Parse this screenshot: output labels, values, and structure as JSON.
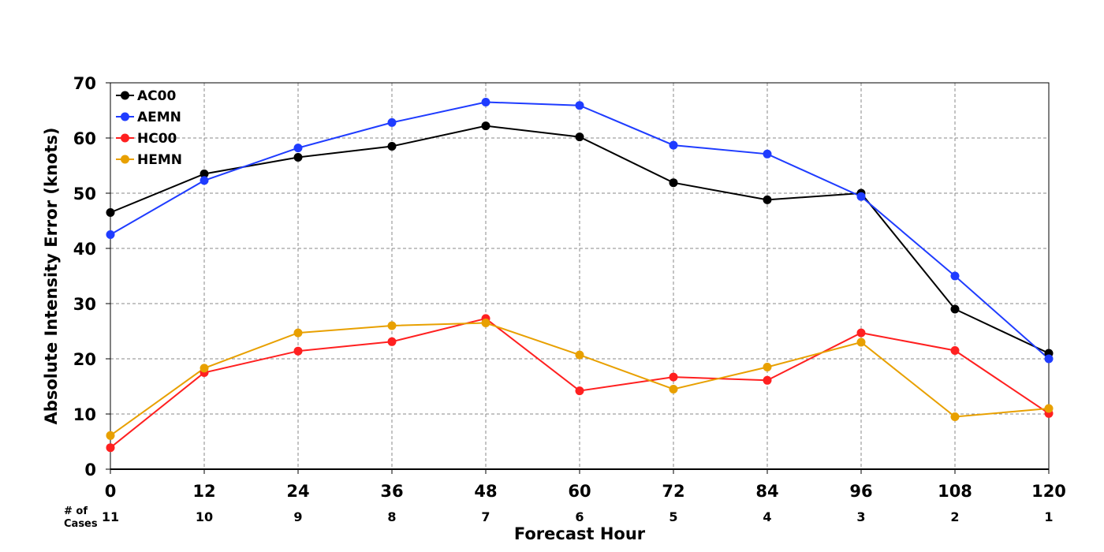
{
  "chart_data": {
    "type": "line",
    "title": "",
    "xlabel": "Forecast Hour",
    "ylabel": "Absolute Intensity Error (knots)",
    "xlim": [
      0,
      120
    ],
    "ylim": [
      0,
      70
    ],
    "grid": true,
    "legend_position": "top-left",
    "x": [
      0,
      12,
      24,
      36,
      48,
      60,
      72,
      84,
      96,
      108,
      120
    ],
    "x_tick_labels": [
      "0",
      "12",
      "24",
      "36",
      "48",
      "60",
      "72",
      "84",
      "96",
      "108",
      "120"
    ],
    "y_tick_labels": [
      "0",
      "10",
      "20",
      "30",
      "40",
      "50",
      "60",
      "70"
    ],
    "cases_label_line1": "# of",
    "cases_label_line2": "Cases",
    "cases": [
      "11",
      "10",
      "9",
      "8",
      "7",
      "6",
      "5",
      "4",
      "3",
      "2",
      "1"
    ],
    "series": [
      {
        "name": "AC00",
        "color": "#000000",
        "values": [
          46.5,
          53.5,
          56.5,
          58.5,
          62.2,
          60.2,
          51.9,
          48.8,
          50.0,
          29.0,
          21.0
        ]
      },
      {
        "name": "AEMN",
        "color": "#1f3cff",
        "values": [
          42.5,
          52.3,
          58.2,
          62.8,
          66.5,
          65.9,
          58.7,
          57.1,
          49.4,
          35.0,
          20.0
        ]
      },
      {
        "name": "HC00",
        "color": "#ff2020",
        "values": [
          3.9,
          17.5,
          21.4,
          23.1,
          27.3,
          14.2,
          16.7,
          16.1,
          24.7,
          21.5,
          10.1
        ]
      },
      {
        "name": "HEMN",
        "color": "#e8a000",
        "values": [
          6.1,
          18.3,
          24.7,
          26.0,
          26.5,
          20.7,
          14.5,
          18.5,
          23.0,
          9.5,
          11.0
        ]
      }
    ]
  }
}
